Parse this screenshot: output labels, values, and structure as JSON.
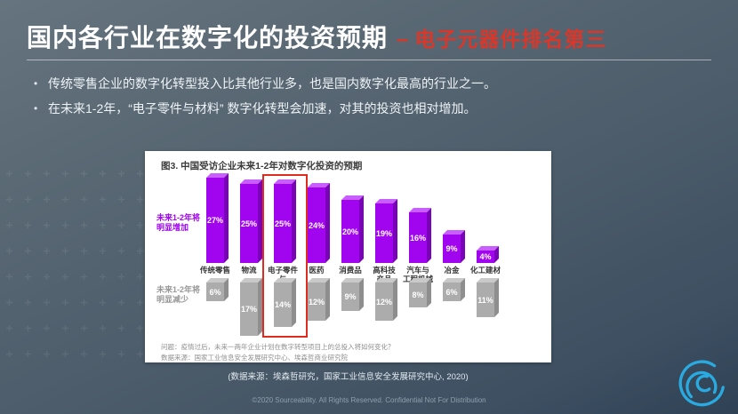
{
  "slide": {
    "title_main": "国内各行业在数字化的投资预期",
    "title_dash": "–",
    "title_accent": "电子元器件排名第三",
    "bullets": [
      "传统零售企业的数字化转型投入比其他行业多，也是国内数字化最高的行业之一。",
      "在未来1-2年，“电子零件与材料” 数字化转型会加速，对其的投资也相对增加。"
    ],
    "caption": "(数据来源：埃森哲研究，国家工业信息安全发展研究中心, 2020)",
    "footer": "©2020 Sourceability. All Rights Reserved. Confidential Not For Distribution"
  },
  "colors": {
    "accent_red": "#d9372a",
    "highlight_box_red": "#e02b20",
    "increase_purple": "#a104ee",
    "decrease_gray": "#acacac",
    "logo_cyan": "#29abe2"
  },
  "chart_data": {
    "type": "bar",
    "title": "图3. 中国受访企业未来1-2年对数字化投资的预期",
    "categories": [
      "传统零售",
      "物流",
      "电子零件与材料",
      "医药",
      "消费品",
      "高科技产品",
      "汽车与工程机械",
      "冶金",
      "化工建材"
    ],
    "categories_lines": [
      [
        "传统零售"
      ],
      [
        "物流"
      ],
      [
        "电子零件与",
        "材料"
      ],
      [
        "医药"
      ],
      [
        "消费品"
      ],
      [
        "高科技",
        "产品"
      ],
      [
        "汽车与",
        "工程机械"
      ],
      [
        "冶金"
      ],
      [
        "化工建材"
      ]
    ],
    "series": [
      {
        "name": "未来1-2年将明显增加",
        "values": [
          27,
          25,
          25,
          24,
          20,
          19,
          16,
          9,
          4
        ],
        "color": "#a104ee"
      },
      {
        "name": "未来1-2年将明显减少",
        "values": [
          6,
          17,
          14,
          12,
          9,
          12,
          8,
          6,
          11
        ],
        "color": "#acacac"
      }
    ],
    "value_suffix": "%",
    "highlight_index": 2,
    "highlight_category": "电子零件与材料",
    "legend": {
      "increase": {
        "line1": "未来1-2年将",
        "line2": "明显增加"
      },
      "decrease": {
        "line1": "未来1-2年将",
        "line2": "明显减少"
      }
    },
    "footnotes": [
      "问题：疫情过后，未来一两年企业计划在数字转型项目上的总投入将如何变化？",
      "数据来源：国家工业信息安全发展研究中心、埃森哲商业研究院"
    ],
    "layout": {
      "bars_direction": "increase up, decrease hanging below labels",
      "ylim_percent": [
        0,
        28
      ]
    }
  }
}
